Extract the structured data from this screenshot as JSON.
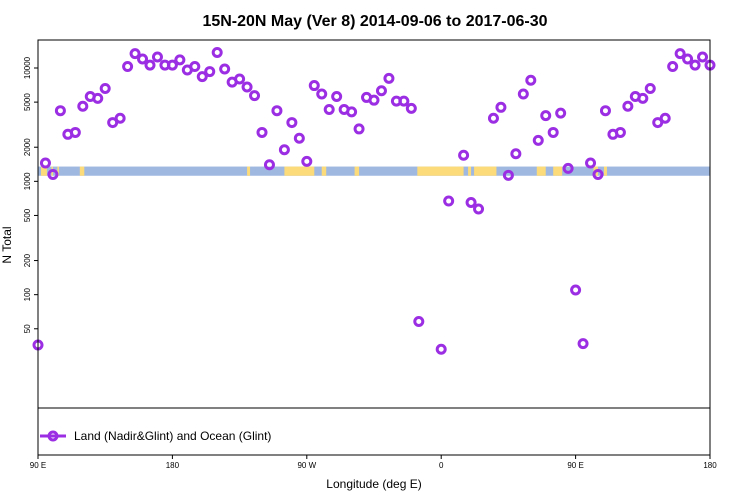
{
  "chart_data": {
    "type": "scatter",
    "title": "15N-20N May (Ver 8)   2014-09-06 to 2017-06-30",
    "xlabel": "Longitude (deg E)",
    "ylabel": "N Total",
    "x_ticks": [
      {
        "value": 90,
        "label": "90 E"
      },
      {
        "value": 180,
        "label": "180"
      },
      {
        "value": 270,
        "label": "90 W"
      },
      {
        "value": 360,
        "label": "0"
      },
      {
        "value": 450,
        "label": "90 E"
      },
      {
        "value": 540,
        "label": "180"
      }
    ],
    "y_ticks": [
      {
        "value": 50,
        "label": "50"
      },
      {
        "value": 100,
        "label": "100"
      },
      {
        "value": 200,
        "label": "200"
      },
      {
        "value": 500,
        "label": "500"
      },
      {
        "value": 1000,
        "label": "1000"
      },
      {
        "value": 2000,
        "label": "2000"
      },
      {
        "value": 5000,
        "label": "5000"
      },
      {
        "value": 10000,
        "label": "10000"
      }
    ],
    "xlim": [
      90,
      540
    ],
    "y_scale": "log",
    "ylim": [
      40,
      20000
    ],
    "series": [
      {
        "name": "Land (Nadir&Glint) and Ocean (Glint)",
        "color": "#9b2de3",
        "points": [
          [
            90,
            36
          ],
          [
            95,
            1450
          ],
          [
            100,
            1150
          ],
          [
            105,
            4200
          ],
          [
            110,
            2600
          ],
          [
            115,
            2700
          ],
          [
            120,
            4600
          ],
          [
            125,
            5600
          ],
          [
            130,
            5400
          ],
          [
            135,
            6600
          ],
          [
            140,
            3300
          ],
          [
            145,
            3600
          ],
          [
            150,
            10300
          ],
          [
            155,
            13400
          ],
          [
            160,
            12000
          ],
          [
            165,
            10600
          ],
          [
            170,
            12500
          ],
          [
            175,
            10600
          ],
          [
            180,
            10600
          ],
          [
            185,
            11800
          ],
          [
            190,
            9600
          ],
          [
            195,
            10300
          ],
          [
            200,
            8400
          ],
          [
            205,
            9300
          ],
          [
            210,
            13700
          ],
          [
            215,
            9800
          ],
          [
            220,
            7500
          ],
          [
            225,
            8000
          ],
          [
            230,
            6800
          ],
          [
            235,
            5700
          ],
          [
            240,
            2700
          ],
          [
            245,
            1400
          ],
          [
            250,
            4200
          ],
          [
            255,
            1900
          ],
          [
            260,
            3300
          ],
          [
            265,
            2400
          ],
          [
            270,
            1500
          ],
          [
            275,
            7000
          ],
          [
            280,
            5900
          ],
          [
            285,
            4300
          ],
          [
            290,
            5600
          ],
          [
            295,
            4300
          ],
          [
            300,
            4100
          ],
          [
            305,
            2900
          ],
          [
            310,
            5500
          ],
          [
            315,
            5200
          ],
          [
            320,
            6300
          ],
          [
            325,
            8100
          ],
          [
            330,
            5100
          ],
          [
            335,
            5100
          ],
          [
            340,
            4400
          ],
          [
            345,
            58
          ],
          [
            360,
            33
          ],
          [
            365,
            670
          ],
          [
            375,
            1700
          ],
          [
            380,
            650
          ],
          [
            385,
            570
          ],
          [
            395,
            3600
          ],
          [
            400,
            4500
          ],
          [
            405,
            1130
          ],
          [
            410,
            1750
          ],
          [
            415,
            5900
          ],
          [
            420,
            7800
          ],
          [
            425,
            2300
          ],
          [
            430,
            3800
          ],
          [
            435,
            2700
          ],
          [
            440,
            4000
          ],
          [
            445,
            1300
          ],
          [
            450,
            110
          ],
          [
            455,
            37
          ],
          [
            460,
            1450
          ],
          [
            465,
            1150
          ],
          [
            470,
            4200
          ],
          [
            475,
            2600
          ],
          [
            480,
            2700
          ],
          [
            485,
            4600
          ],
          [
            490,
            5600
          ],
          [
            495,
            5400
          ],
          [
            500,
            6600
          ],
          [
            505,
            3300
          ],
          [
            510,
            3600
          ],
          [
            515,
            10300
          ],
          [
            520,
            13400
          ],
          [
            525,
            12000
          ],
          [
            530,
            10600
          ],
          [
            535,
            12500
          ],
          [
            540,
            10600
          ]
        ]
      }
    ],
    "band": {
      "y_range": [
        1120,
        1350
      ],
      "ocean_color": "#9fb8e0",
      "land_color": "#fbdb7a",
      "land_segments": [
        [
          92,
          96
        ],
        [
          99,
          100
        ],
        [
          103,
          104
        ],
        [
          118,
          121
        ],
        [
          230,
          232
        ],
        [
          255,
          275
        ],
        [
          280,
          283
        ],
        [
          302,
          305
        ],
        [
          344,
          375
        ],
        [
          378,
          380
        ],
        [
          382,
          397
        ],
        [
          424,
          430
        ],
        [
          435,
          441
        ],
        [
          462,
          465
        ],
        [
          469,
          471
        ]
      ]
    },
    "legend": {
      "placement": "bottom-left",
      "label": "Land (Nadir&Glint) and Ocean (Glint)"
    }
  }
}
